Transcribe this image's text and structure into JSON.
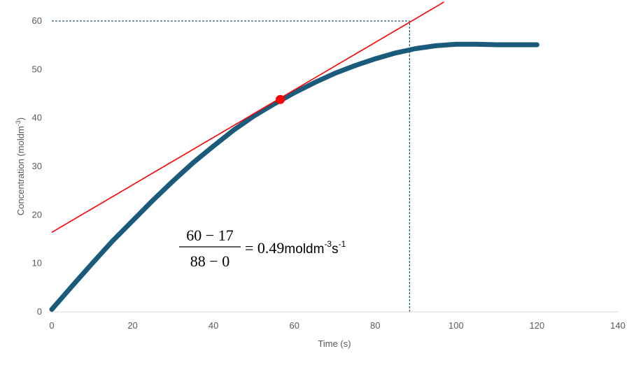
{
  "chart_data": {
    "type": "line",
    "title": "",
    "xlabel": "Time (s)",
    "ylabel_main": "Concentration (moldm",
    "ylabel_sup": "-3",
    "ylabel_tail": ")",
    "xlim": [
      0,
      140
    ],
    "ylim": [
      0,
      60
    ],
    "xticks": [
      0,
      20,
      40,
      60,
      80,
      100,
      120,
      140
    ],
    "yticks": [
      0,
      10,
      20,
      30,
      40,
      50,
      60
    ],
    "grid": false,
    "colors": {
      "curve": "#1a5a7a",
      "tangent": "#ff0000",
      "guide": "#1f5f73",
      "axis": "#d9d9d9",
      "text": "#595959"
    },
    "series": [
      {
        "x": [
          0,
          5,
          10,
          15,
          20,
          25,
          30,
          35,
          40,
          45,
          50,
          55,
          57,
          60,
          65,
          70,
          75,
          80,
          85,
          90,
          95,
          100,
          105,
          110,
          115,
          120
        ],
        "y": [
          0.5,
          5.3,
          10,
          14.6,
          18.8,
          23,
          27,
          30.8,
          34.2,
          37.5,
          40.4,
          42.9,
          43.8,
          45.2,
          47.3,
          49.2,
          50.8,
          52.2,
          53.4,
          54.3,
          54.9,
          55.2,
          55.2,
          55.1,
          55.1,
          55.1
        ]
      }
    ],
    "tangent": {
      "x": [
        0,
        97
      ],
      "y": [
        16.4,
        63.9
      ]
    },
    "tangent_point": {
      "x": 56.5,
      "y": 43.8
    },
    "guides": {
      "horizontal": {
        "x": [
          0,
          88.5
        ],
        "y": 60
      },
      "vertical": {
        "x": 88.5,
        "y": [
          0,
          60
        ]
      }
    },
    "equation": {
      "numerator": "60 − 17",
      "denominator": "88 − 0",
      "equals": "= 0.49",
      "unit1": "moldm",
      "sup1": "-3",
      "unit2": "s",
      "sup2": "-1"
    }
  }
}
